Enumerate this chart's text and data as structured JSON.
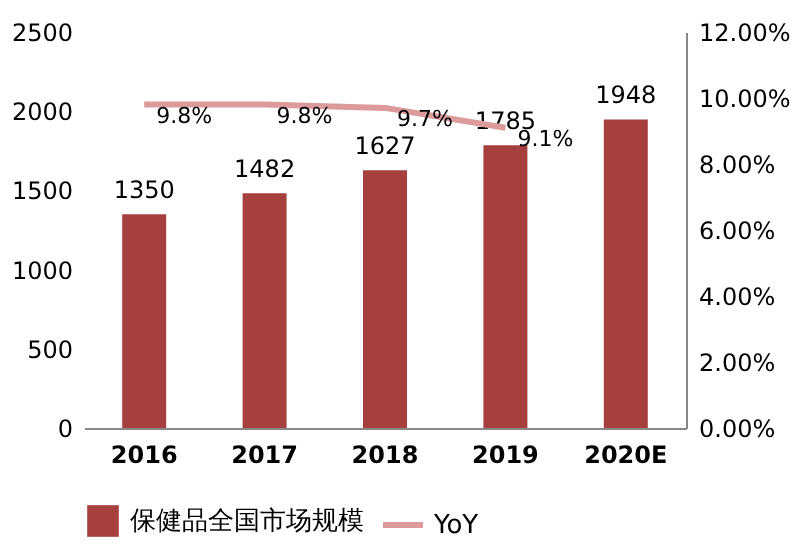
{
  "chart_data": {
    "type": "bar",
    "categories": [
      "2016",
      "2017",
      "2018",
      "2019",
      "2020E"
    ],
    "series": [
      {
        "name": "保健品全国市场规模",
        "color": "#a5403f",
        "values": [
          1350,
          1482,
          1627,
          1785,
          1948
        ]
      },
      {
        "name": "YoY",
        "type": "line",
        "axis": "y2",
        "color": "#dc9a9a",
        "values": [
          9.8,
          9.8,
          9.7,
          9.1,
          null
        ],
        "value_labels": [
          "9.8%",
          "9.8%",
          "9.7%",
          "9.1%",
          null
        ]
      }
    ],
    "ylim": [
      0,
      2500
    ],
    "yticks": [
      0,
      500,
      1000,
      1500,
      2000,
      2500
    ],
    "y2lim": [
      0,
      12
    ],
    "y2ticks": [
      {
        "value": 0,
        "label": "0.00%"
      },
      {
        "value": 2,
        "label": "2.00%"
      },
      {
        "value": 4,
        "label": "4.00%"
      },
      {
        "value": 6,
        "label": "6.00%"
      },
      {
        "value": 8,
        "label": "8.00%"
      },
      {
        "value": 10,
        "label": "10.00%"
      },
      {
        "value": 12,
        "label": "12.00%"
      }
    ],
    "data_labels": true,
    "legend": "bottom",
    "grid": false,
    "marker": "none",
    "line_style": "solid"
  }
}
